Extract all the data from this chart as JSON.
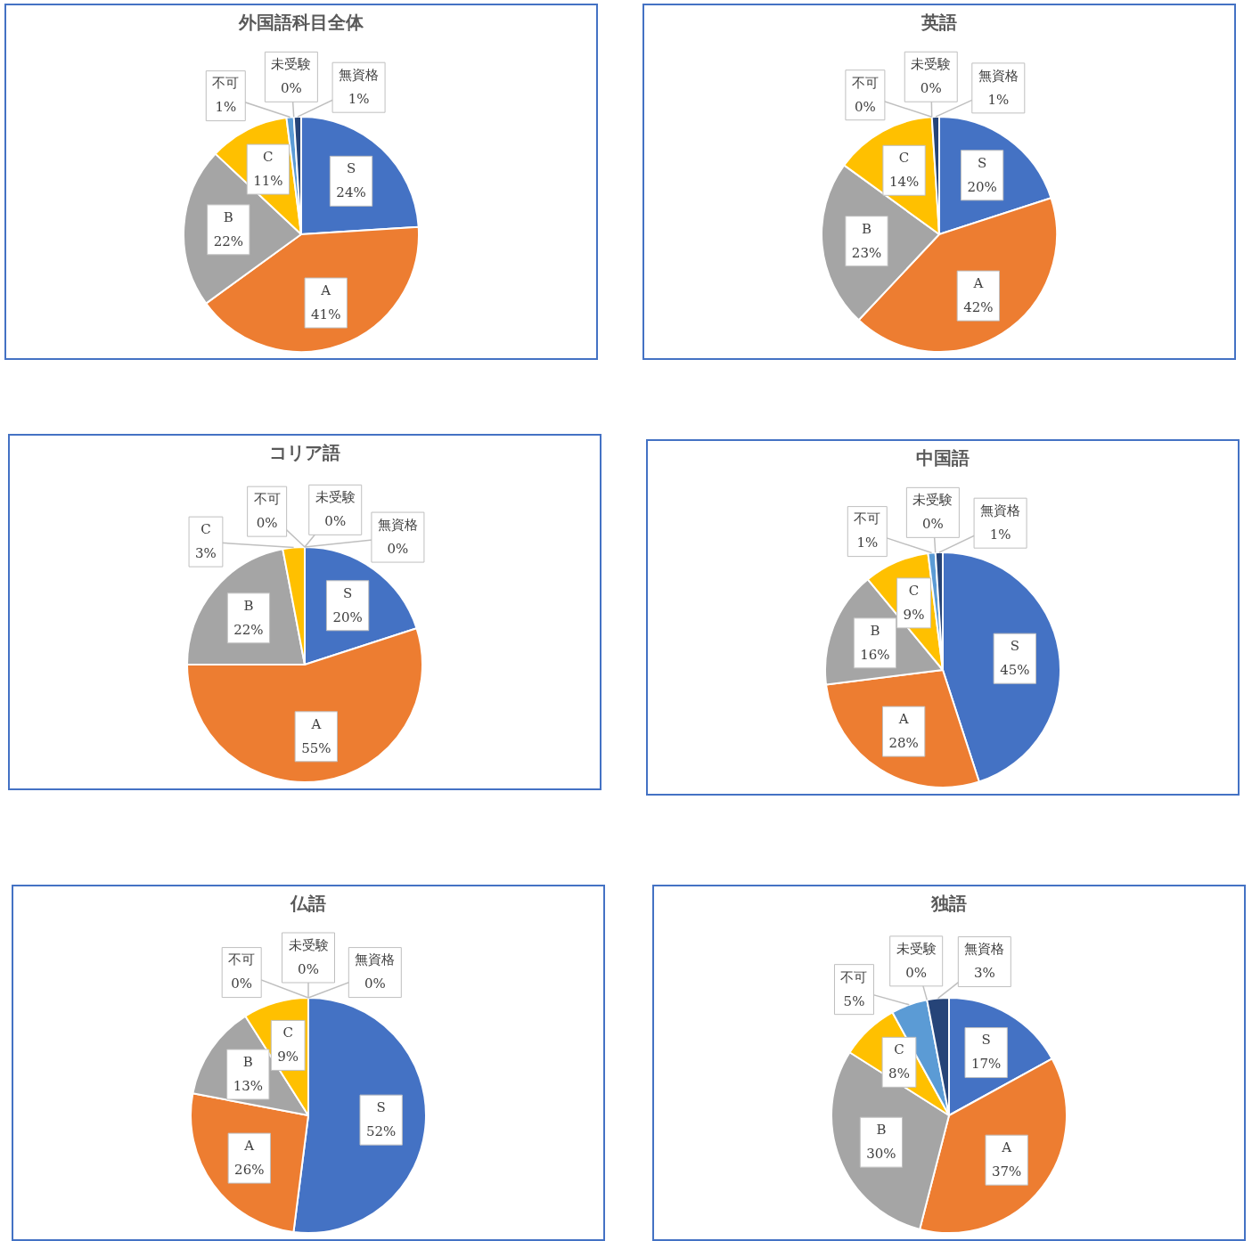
{
  "chart_data": [
    {
      "type": "pie",
      "title": "外国語科目全体",
      "categories": [
        "S",
        "A",
        "B",
        "C",
        "不可",
        "未受験",
        "無資格"
      ],
      "values": [
        24,
        41,
        22,
        11,
        1,
        0,
        1
      ],
      "value_labels": [
        "24%",
        "41%",
        "22%",
        "11%",
        "1%",
        "0%",
        "1%"
      ],
      "colors": [
        "#4472c4",
        "#ed7d31",
        "#a5a5a5",
        "#ffc000",
        "#5b9bd5",
        "#70ad47",
        "#264478"
      ]
    },
    {
      "type": "pie",
      "title": "英語",
      "categories": [
        "S",
        "A",
        "B",
        "C",
        "不可",
        "未受験",
        "無資格"
      ],
      "values": [
        20,
        42,
        23,
        14,
        0,
        0,
        1
      ],
      "value_labels": [
        "20%",
        "42%",
        "23%",
        "14%",
        "0%",
        "0%",
        "1%"
      ],
      "colors": [
        "#4472c4",
        "#ed7d31",
        "#a5a5a5",
        "#ffc000",
        "#5b9bd5",
        "#70ad47",
        "#264478"
      ]
    },
    {
      "type": "pie",
      "title": "コリア語",
      "categories": [
        "S",
        "A",
        "B",
        "C",
        "不可",
        "未受験",
        "無資格"
      ],
      "values": [
        20,
        55,
        22,
        3,
        0,
        0,
        0
      ],
      "value_labels": [
        "20%",
        "55%",
        "22%",
        "3%",
        "0%",
        "0%",
        "0%"
      ],
      "colors": [
        "#4472c4",
        "#ed7d31",
        "#a5a5a5",
        "#ffc000",
        "#5b9bd5",
        "#70ad47",
        "#264478"
      ]
    },
    {
      "type": "pie",
      "title": "中国語",
      "categories": [
        "S",
        "A",
        "B",
        "C",
        "不可",
        "未受験",
        "無資格"
      ],
      "values": [
        45,
        28,
        16,
        9,
        1,
        0,
        1
      ],
      "value_labels": [
        "45%",
        "28%",
        "16%",
        "9%",
        "1%",
        "0%",
        "1%"
      ],
      "colors": [
        "#4472c4",
        "#ed7d31",
        "#a5a5a5",
        "#ffc000",
        "#5b9bd5",
        "#70ad47",
        "#264478"
      ]
    },
    {
      "type": "pie",
      "title": "仏語",
      "categories": [
        "S",
        "A",
        "B",
        "C",
        "不可",
        "未受験",
        "無資格"
      ],
      "values": [
        52,
        26,
        13,
        9,
        0,
        0,
        0
      ],
      "value_labels": [
        "52%",
        "26%",
        "13%",
        "9%",
        "0%",
        "0%",
        "0%"
      ],
      "colors": [
        "#4472c4",
        "#ed7d31",
        "#a5a5a5",
        "#ffc000",
        "#5b9bd5",
        "#70ad47",
        "#264478"
      ]
    },
    {
      "type": "pie",
      "title": "独語",
      "categories": [
        "S",
        "A",
        "B",
        "C",
        "不可",
        "未受験",
        "無資格"
      ],
      "values": [
        17,
        37,
        30,
        8,
        5,
        0,
        3
      ],
      "value_labels": [
        "17%",
        "37%",
        "30%",
        "8%",
        "5%",
        "0%",
        "3%"
      ],
      "colors": [
        "#4472c4",
        "#ed7d31",
        "#a5a5a5",
        "#ffc000",
        "#5b9bd5",
        "#70ad47",
        "#264478"
      ]
    }
  ]
}
